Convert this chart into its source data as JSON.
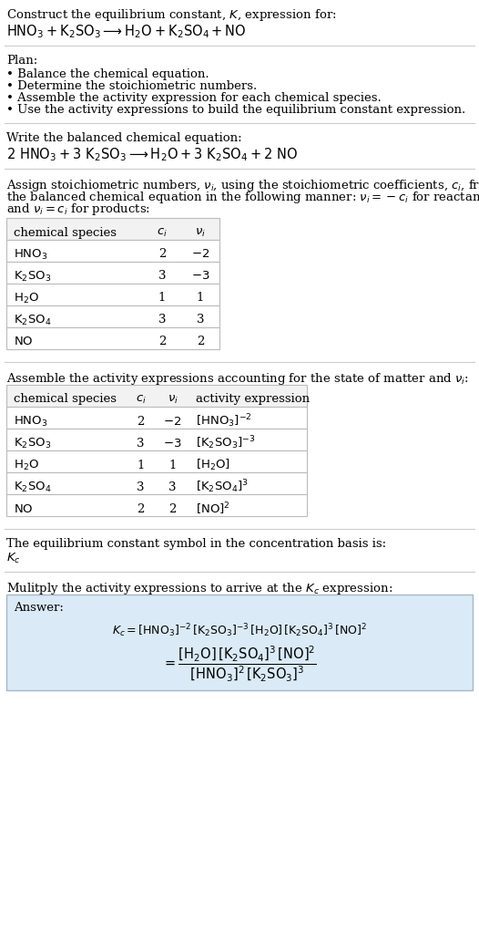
{
  "title_line1": "Construct the equilibrium constant, $K$, expression for:",
  "title_line2": "$\\mathrm{HNO_3 + K_2SO_3 \\longrightarrow H_2O + K_2SO_4 + NO}$",
  "plan_header": "Plan:",
  "plan_items": [
    "• Balance the chemical equation.",
    "• Determine the stoichiometric numbers.",
    "• Assemble the activity expression for each chemical species.",
    "• Use the activity expressions to build the equilibrium constant expression."
  ],
  "balanced_header": "Write the balanced chemical equation:",
  "balanced_eq": "$2\\ \\mathrm{HNO_3 + 3\\ K_2SO_3 \\longrightarrow H_2O + 3\\ K_2SO_4 + 2\\ NO}$",
  "stoich_header_parts": [
    "Assign stoichiometric numbers, $\\nu_i$, using the stoichiometric coefficients, $c_i$, from",
    "the balanced chemical equation in the following manner: $\\nu_i = -c_i$ for reactants",
    "and $\\nu_i = c_i$ for products:"
  ],
  "table1_cols": [
    "chemical species",
    "$c_i$",
    "$\\nu_i$"
  ],
  "table1_rows": [
    [
      "$\\mathrm{HNO_3}$",
      "2",
      "$-2$"
    ],
    [
      "$\\mathrm{K_2SO_3}$",
      "3",
      "$-3$"
    ],
    [
      "$\\mathrm{H_2O}$",
      "1",
      "1"
    ],
    [
      "$\\mathrm{K_2SO_4}$",
      "3",
      "3"
    ],
    [
      "$\\mathrm{NO}$",
      "2",
      "2"
    ]
  ],
  "activity_header": "Assemble the activity expressions accounting for the state of matter and $\\nu_i$:",
  "table2_cols": [
    "chemical species",
    "$c_i$",
    "$\\nu_i$",
    "activity expression"
  ],
  "table2_rows": [
    [
      "$\\mathrm{HNO_3}$",
      "2",
      "$-2$",
      "$[\\mathrm{HNO_3}]^{-2}$"
    ],
    [
      "$\\mathrm{K_2SO_3}$",
      "3",
      "$-3$",
      "$[\\mathrm{K_2SO_3}]^{-3}$"
    ],
    [
      "$\\mathrm{H_2O}$",
      "1",
      "1",
      "$[\\mathrm{H_2O}]$"
    ],
    [
      "$\\mathrm{K_2SO_4}$",
      "3",
      "3",
      "$[\\mathrm{K_2SO_4}]^3$"
    ],
    [
      "$\\mathrm{NO}$",
      "2",
      "2",
      "$[\\mathrm{NO}]^2$"
    ]
  ],
  "kc_symbol_header": "The equilibrium constant symbol in the concentration basis is:",
  "kc_symbol": "$K_c$",
  "multiply_header": "Mulitply the activity expressions to arrive at the $K_c$ expression:",
  "answer_label": "Answer:",
  "answer_line1": "$K_c = [\\mathrm{HNO_3}]^{-2}\\,[\\mathrm{K_2SO_3}]^{-3}\\,[\\mathrm{H_2O}]\\,[\\mathrm{K_2SO_4}]^3\\,[\\mathrm{NO}]^2$",
  "answer_eq": "$= \\dfrac{[\\mathrm{H_2O}]\\,[\\mathrm{K_2SO_4}]^3\\,[\\mathrm{NO}]^2}{[\\mathrm{HNO_3}]^2\\,[\\mathrm{K_2SO_3}]^3}$",
  "bg_color": "#ffffff",
  "table_header_bg": "#f2f2f2",
  "table_border_color": "#bbbbbb",
  "answer_box_bg": "#daeaf7",
  "answer_box_border": "#a0b8cc",
  "separator_color": "#cccccc",
  "text_color": "#000000",
  "font_size": 9.5,
  "title_font_size": 10.5
}
